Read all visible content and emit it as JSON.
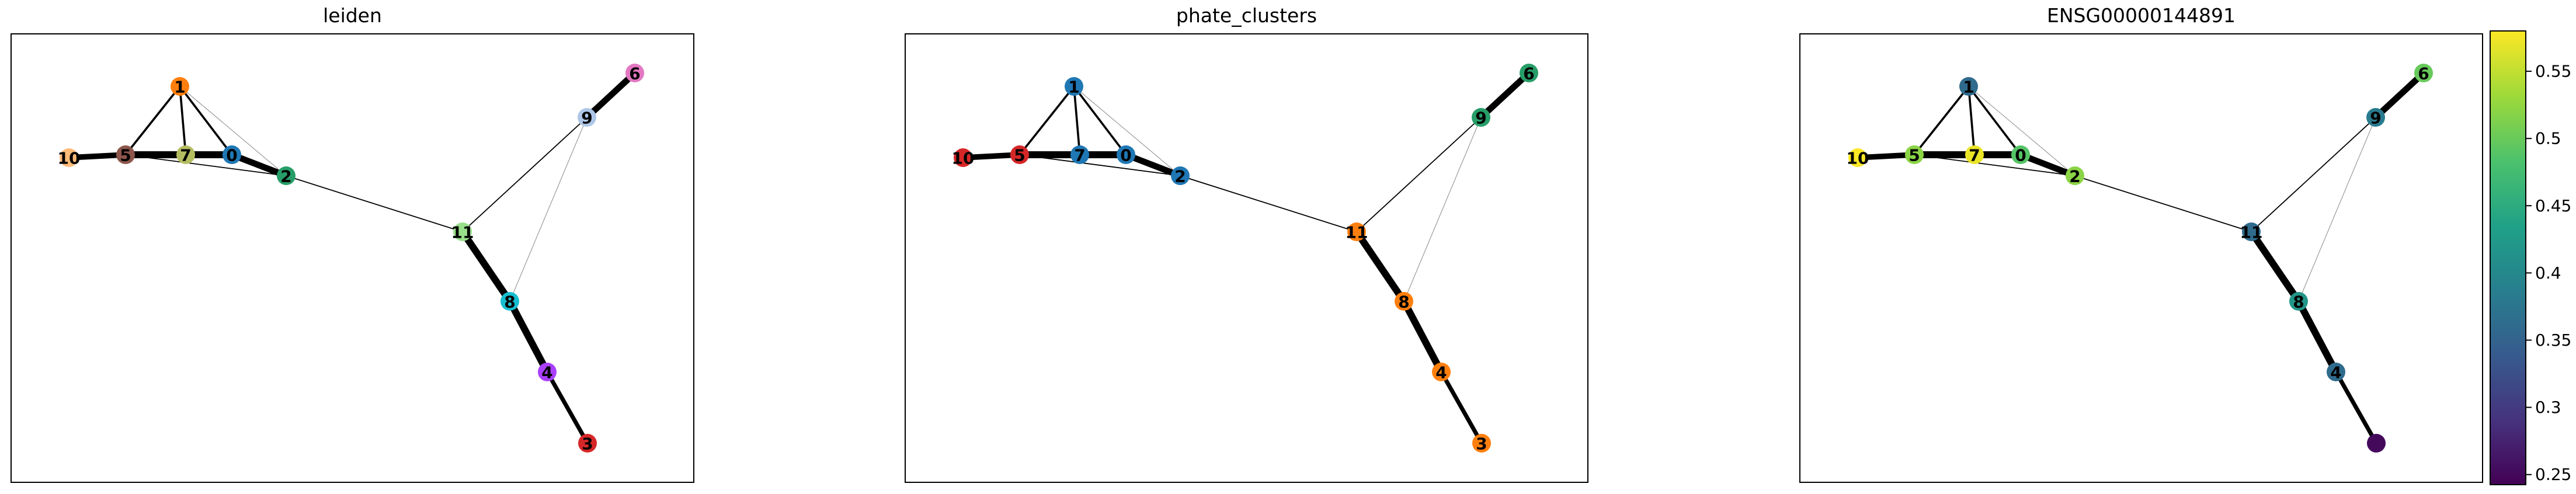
{
  "panels": [
    {
      "title": "leiden",
      "color_mode": "categorical"
    },
    {
      "title": "phate_clusters",
      "color_mode": "categorical"
    },
    {
      "title": "ENSG00000144891",
      "color_mode": "continuous"
    }
  ],
  "nodes": [
    {
      "id": "0",
      "leiden_color": "#1f77b4",
      "phate_color": "#1f77b4",
      "expression": 0.49
    },
    {
      "id": "1",
      "leiden_color": "#ff7f0e",
      "phate_color": "#1f77b4",
      "expression": 0.36
    },
    {
      "id": "2",
      "leiden_color": "#279e68",
      "phate_color": "#1f77b4",
      "expression": 0.52
    },
    {
      "id": "3",
      "leiden_color": "#d62728",
      "phate_color": "#ff7f0e",
      "expression": 0.25
    },
    {
      "id": "4",
      "leiden_color": "#aa40fc",
      "phate_color": "#ff7f0e",
      "expression": 0.36
    },
    {
      "id": "5",
      "leiden_color": "#8c564b",
      "phate_color": "#d62728",
      "expression": 0.52
    },
    {
      "id": "6",
      "leiden_color": "#e377c2",
      "phate_color": "#279e68",
      "expression": 0.5
    },
    {
      "id": "7",
      "leiden_color": "#b5bd61",
      "phate_color": "#1f77b4",
      "expression": 0.57
    },
    {
      "id": "8",
      "leiden_color": "#17becf",
      "phate_color": "#ff7f0e",
      "expression": 0.42
    },
    {
      "id": "9",
      "leiden_color": "#aec7e8",
      "phate_color": "#279e68",
      "expression": 0.38
    },
    {
      "id": "10",
      "leiden_color": "#ffbb78",
      "phate_color": "#d62728",
      "expression": 0.58
    },
    {
      "id": "11",
      "leiden_color": "#98df8a",
      "phate_color": "#ff7f0e",
      "expression": 0.36
    }
  ],
  "edges": [
    {
      "source": "10",
      "target": "5",
      "weight": 0.8
    },
    {
      "source": "5",
      "target": "7",
      "weight": 1.0
    },
    {
      "source": "7",
      "target": "0",
      "weight": 1.0
    },
    {
      "source": "0",
      "target": "2",
      "weight": 0.9
    },
    {
      "source": "1",
      "target": "5",
      "weight": 0.3
    },
    {
      "source": "1",
      "target": "7",
      "weight": 0.3
    },
    {
      "source": "1",
      "target": "0",
      "weight": 0.3
    },
    {
      "source": "1",
      "target": "2",
      "weight": 0.08
    },
    {
      "source": "5",
      "target": "2",
      "weight": 0.15
    },
    {
      "source": "2",
      "target": "11",
      "weight": 0.15
    },
    {
      "source": "11",
      "target": "9",
      "weight": 0.15
    },
    {
      "source": "9",
      "target": "6",
      "weight": 0.9
    },
    {
      "source": "9",
      "target": "8",
      "weight": 0.05
    },
    {
      "source": "11",
      "target": "8",
      "weight": 1.0
    },
    {
      "source": "8",
      "target": "4",
      "weight": 1.0
    },
    {
      "source": "4",
      "target": "3",
      "weight": 0.6
    }
  ],
  "colorbar": {
    "colormap": "viridis",
    "min": 0.2425,
    "max": 0.58,
    "ticks": [
      0.25,
      0.3,
      0.35,
      0.4,
      0.45,
      0.5,
      0.55
    ],
    "tick_labels": [
      "0.25",
      "0.3",
      "0.35",
      "0.4",
      "0.45",
      "0.5",
      "0.55"
    ]
  }
}
